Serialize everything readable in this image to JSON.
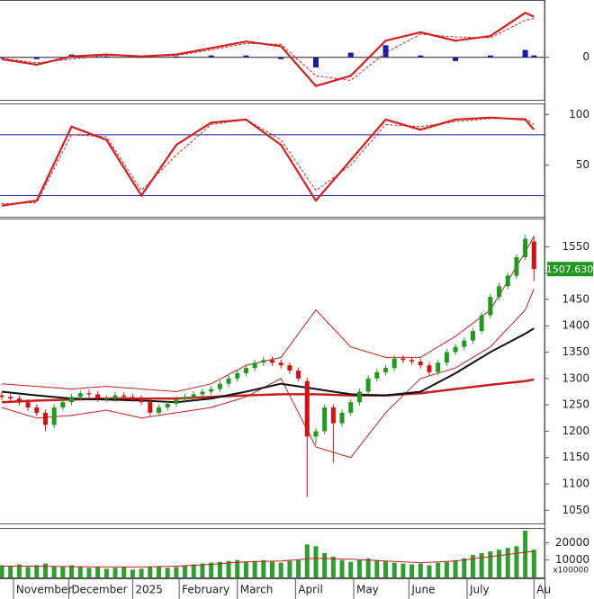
{
  "chart_data": [
    {
      "type": "macd",
      "x": [
        0,
        12,
        24,
        36,
        48,
        60,
        72,
        84,
        96,
        108,
        120,
        132,
        144,
        156,
        168,
        180,
        183
      ],
      "series": [
        {
          "color": "#d42020",
          "values": [
            -2,
            -8,
            1,
            3,
            1,
            3,
            10,
            17,
            12,
            -31,
            -20,
            18,
            27,
            18,
            23,
            48,
            44
          ]
        },
        {
          "color": "#d42020",
          "dashed": true,
          "values": [
            -1,
            -6,
            -2,
            2,
            1,
            2,
            8,
            15,
            14,
            -20,
            -25,
            5,
            25,
            22,
            21,
            40,
            42
          ]
        }
      ],
      "histogram": {
        "color": "#1a1aa8",
        "values": [
          -1,
          -2,
          3,
          1,
          0,
          1,
          2,
          2,
          -2,
          -11,
          5,
          13,
          2,
          -4,
          2,
          8,
          2
        ]
      },
      "ylim": [
        -45,
        60
      ],
      "yticks": [
        0
      ],
      "grid": true
    },
    {
      "type": "stochastic",
      "x": [
        0,
        12,
        24,
        36,
        48,
        60,
        72,
        84,
        96,
        108,
        120,
        132,
        144,
        156,
        168,
        180,
        183
      ],
      "series": [
        {
          "color": "#d42020",
          "values": [
            10,
            15,
            88,
            75,
            20,
            70,
            92,
            95,
            70,
            15,
            55,
            95,
            85,
            95,
            97,
            95,
            85
          ]
        },
        {
          "color": "#d42020",
          "dashed": true,
          "values": [
            12,
            13,
            80,
            78,
            25,
            60,
            90,
            95,
            75,
            25,
            50,
            90,
            88,
            93,
            96,
            96,
            90
          ]
        }
      ],
      "levels": [
        20,
        80
      ],
      "level_color": "#1a1aa8",
      "ylim": [
        0,
        110
      ],
      "yticks": [
        50,
        100
      ]
    },
    {
      "type": "candlestick",
      "x": [
        0,
        3,
        6,
        9,
        12,
        15,
        18,
        21,
        24,
        27,
        30,
        33,
        36,
        39,
        42,
        45,
        48,
        51,
        54,
        57,
        60,
        63,
        66,
        69,
        72,
        75,
        78,
        81,
        84,
        87,
        90,
        93,
        96,
        99,
        102,
        105,
        108,
        111,
        114,
        117,
        120,
        123,
        126,
        129,
        132,
        135,
        138,
        141,
        144,
        147,
        150,
        153,
        156,
        159,
        162,
        165,
        168,
        171,
        174,
        177,
        180,
        183
      ],
      "open": [
        1268,
        1265,
        1262,
        1255,
        1245,
        1235,
        1212,
        1245,
        1255,
        1265,
        1272,
        1270,
        1262,
        1262,
        1268,
        1265,
        1262,
        1255,
        1235,
        1245,
        1252,
        1260,
        1265,
        1270,
        1275,
        1280,
        1290,
        1300,
        1310,
        1320,
        1330,
        1335,
        1330,
        1325,
        1315,
        1295,
        1190,
        1200,
        1245,
        1215,
        1235,
        1255,
        1275,
        1300,
        1312,
        1320,
        1338,
        1335,
        1332,
        1325,
        1312,
        1330,
        1350,
        1360,
        1372,
        1390,
        1420,
        1455,
        1475,
        1495,
        1530,
        1560
      ],
      "high": [
        1274,
        1271,
        1268,
        1261,
        1251,
        1241,
        1251,
        1261,
        1271,
        1278,
        1278,
        1276,
        1268,
        1274,
        1274,
        1271,
        1268,
        1261,
        1251,
        1258,
        1266,
        1271,
        1276,
        1281,
        1286,
        1296,
        1306,
        1316,
        1326,
        1336,
        1341,
        1341,
        1336,
        1331,
        1321,
        1301,
        1206,
        1251,
        1251,
        1241,
        1261,
        1281,
        1306,
        1318,
        1326,
        1344,
        1344,
        1341,
        1338,
        1331,
        1336,
        1356,
        1366,
        1378,
        1396,
        1426,
        1461,
        1481,
        1501,
        1536,
        1572,
        1570
      ],
      "low": [
        1259,
        1256,
        1249,
        1239,
        1229,
        1200,
        1206,
        1239,
        1249,
        1259,
        1264,
        1256,
        1256,
        1256,
        1259,
        1256,
        1249,
        1229,
        1229,
        1239,
        1246,
        1254,
        1259,
        1264,
        1269,
        1274,
        1284,
        1294,
        1304,
        1314,
        1324,
        1324,
        1319,
        1309,
        1294,
        1075,
        1175,
        1194,
        1140,
        1209,
        1229,
        1249,
        1269,
        1294,
        1306,
        1314,
        1329,
        1326,
        1319,
        1306,
        1306,
        1324,
        1344,
        1354,
        1366,
        1384,
        1414,
        1449,
        1469,
        1489,
        1524,
        1485
      ],
      "close": [
        1265,
        1262,
        1255,
        1245,
        1235,
        1212,
        1245,
        1255,
        1265,
        1272,
        1270,
        1262,
        1262,
        1268,
        1265,
        1262,
        1255,
        1235,
        1245,
        1252,
        1260,
        1265,
        1270,
        1275,
        1280,
        1290,
        1300,
        1310,
        1320,
        1330,
        1335,
        1330,
        1325,
        1315,
        1300,
        1190,
        1200,
        1245,
        1215,
        1235,
        1255,
        1275,
        1300,
        1312,
        1320,
        1338,
        1335,
        1332,
        1325,
        1312,
        1330,
        1350,
        1360,
        1372,
        1390,
        1420,
        1455,
        1475,
        1495,
        1530,
        1565,
        1507.63
      ],
      "up_color": "#1f9a1f",
      "down_color": "#d41010",
      "line_x": [
        0,
        12,
        24,
        36,
        48,
        60,
        72,
        84,
        96,
        108,
        120,
        132,
        144,
        156,
        168,
        180,
        183
      ],
      "lines": [
        {
          "color": "#c81e1e",
          "width": 1,
          "values": [
            1290,
            1285,
            1280,
            1285,
            1280,
            1275,
            1290,
            1325,
            1340,
            1430,
            1360,
            1340,
            1340,
            1380,
            1430,
            1540,
            1570
          ]
        },
        {
          "color": "#c81e1e",
          "width": 1,
          "values": [
            1245,
            1225,
            1230,
            1240,
            1225,
            1235,
            1245,
            1265,
            1300,
            1170,
            1150,
            1235,
            1300,
            1320,
            1360,
            1430,
            1470
          ]
        },
        {
          "color": "#c81e1e",
          "width": 2.5,
          "values": [
            1255,
            1258,
            1260,
            1262,
            1262,
            1262,
            1265,
            1268,
            1270,
            1270,
            1268,
            1268,
            1272,
            1280,
            1288,
            1295,
            1298
          ]
        },
        {
          "color": "#111111",
          "width": 2,
          "values": [
            1275,
            1268,
            1262,
            1260,
            1258,
            1255,
            1262,
            1275,
            1290,
            1280,
            1270,
            1268,
            1275,
            1310,
            1350,
            1385,
            1395
          ]
        }
      ],
      "last_price": {
        "value": 1507.63,
        "label": "1507.630"
      },
      "last_price_color": "#1f9a1f",
      "ylim": [
        1025,
        1600
      ],
      "yticks": [
        1050,
        1100,
        1150,
        1200,
        1250,
        1300,
        1350,
        1400,
        1450,
        1500,
        1550
      ]
    },
    {
      "type": "bar",
      "x": [
        0,
        3,
        6,
        9,
        12,
        15,
        18,
        21,
        24,
        27,
        30,
        33,
        36,
        39,
        42,
        45,
        48,
        51,
        54,
        57,
        60,
        63,
        66,
        69,
        72,
        75,
        78,
        81,
        84,
        87,
        90,
        93,
        96,
        99,
        102,
        105,
        108,
        111,
        114,
        117,
        120,
        123,
        126,
        129,
        132,
        135,
        138,
        141,
        144,
        147,
        150,
        153,
        156,
        159,
        162,
        165,
        168,
        171,
        174,
        177,
        180,
        183
      ],
      "values": [
        7000,
        6500,
        7500,
        6000,
        7000,
        8000,
        6500,
        6000,
        7000,
        6000,
        5500,
        6000,
        5000,
        5500,
        6000,
        4500,
        5000,
        6000,
        6500,
        5500,
        6000,
        7000,
        7500,
        8000,
        8500,
        9000,
        9500,
        10000,
        9000,
        9500,
        10000,
        9000,
        8500,
        9500,
        10000,
        19000,
        18000,
        14000,
        12000,
        10000,
        9000,
        10000,
        11000,
        10000,
        9500,
        8500,
        8000,
        7500,
        8000,
        7000,
        8500,
        9000,
        10000,
        11000,
        13000,
        14000,
        15000,
        16000,
        17000,
        18000,
        27000,
        16000
      ],
      "color": "#2e9e2e",
      "line_x": [
        0,
        12,
        24,
        36,
        48,
        60,
        72,
        84,
        96,
        108,
        120,
        132,
        144,
        156,
        168,
        180,
        183
      ],
      "line": {
        "color": "#c81e1e",
        "values": [
          6500,
          6500,
          6200,
          6000,
          6000,
          6500,
          7500,
          9000,
          9500,
          11000,
          10500,
          9500,
          8500,
          9500,
          12000,
          14500,
          15000
        ]
      },
      "unit_label": "x100000",
      "ylim": [
        0,
        28000
      ],
      "yticks": [
        10000,
        20000
      ],
      "xlim": [
        0,
        186
      ],
      "xticks": [
        {
          "value": 4,
          "label": "November"
        },
        {
          "value": 23,
          "label": "December"
        },
        {
          "value": 45,
          "label": "2025"
        },
        {
          "value": 61,
          "label": "February"
        },
        {
          "value": 81,
          "label": "March"
        },
        {
          "value": 101,
          "label": "April"
        },
        {
          "value": 121,
          "label": "May"
        },
        {
          "value": 140,
          "label": "June"
        },
        {
          "value": 160,
          "label": "July"
        },
        {
          "value": 183,
          "label": "Au"
        }
      ]
    }
  ]
}
